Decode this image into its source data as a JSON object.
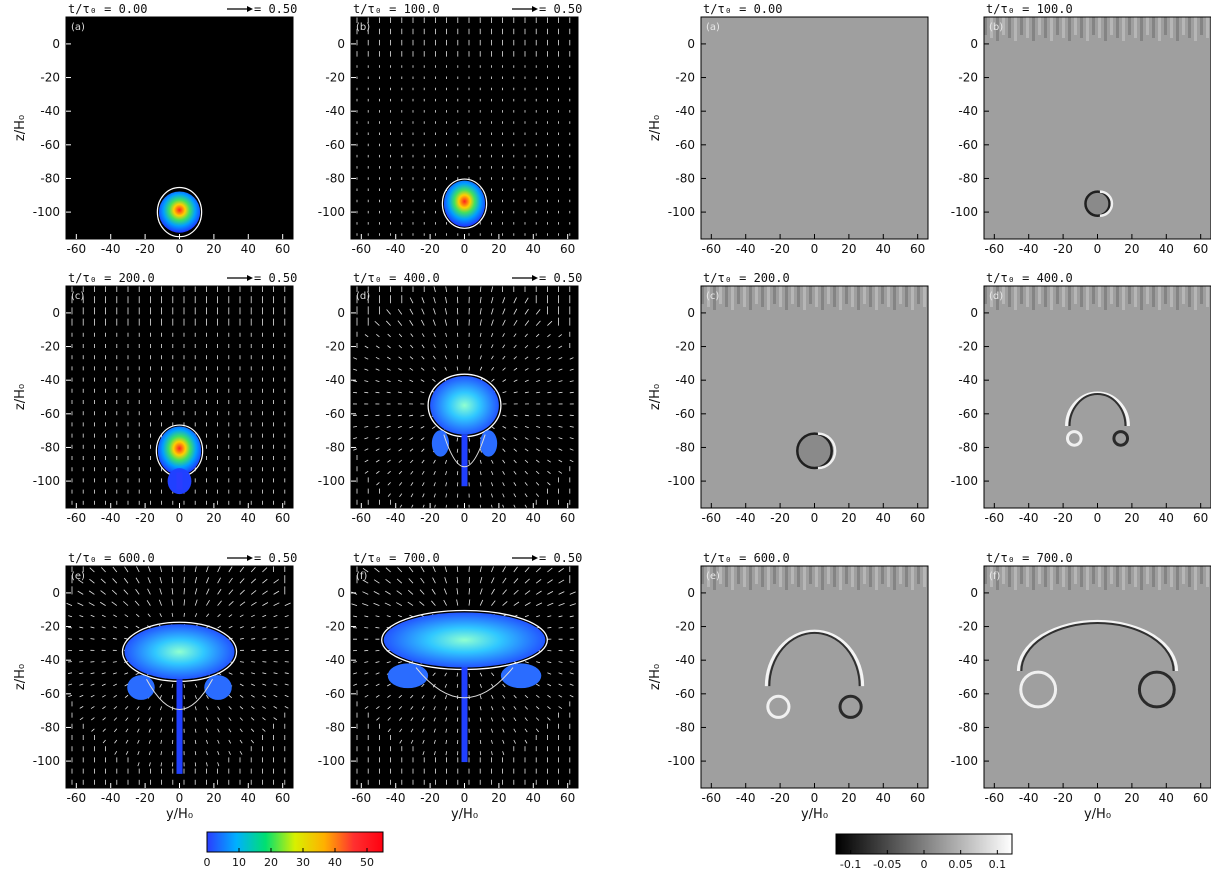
{
  "figure": {
    "left_group": "magnetic field strength with velocity arrows",
    "right_group": "grayscale field"
  },
  "panels": [
    {
      "col": 0,
      "row": 0,
      "letter": "(a)",
      "time": "t/τ₀ = 0.00",
      "arrow_label": "= 0.50",
      "side": "left"
    },
    {
      "col": 1,
      "row": 0,
      "letter": "(b)",
      "time": "t/τ₀ = 100.0",
      "arrow_label": "= 0.50",
      "side": "left"
    },
    {
      "col": 0,
      "row": 1,
      "letter": "(c)",
      "time": "t/τ₀ = 200.0",
      "arrow_label": "= 0.50",
      "side": "left"
    },
    {
      "col": 1,
      "row": 1,
      "letter": "(d)",
      "time": "t/τ₀ = 400.0",
      "arrow_label": "= 0.50",
      "side": "left"
    },
    {
      "col": 0,
      "row": 2,
      "letter": "(e)",
      "time": "t/τ₀ = 600.0",
      "arrow_label": "= 0.50",
      "side": "left"
    },
    {
      "col": 1,
      "row": 2,
      "letter": "(f)",
      "time": "t/τ₀ = 700.0",
      "arrow_label": "= 0.50",
      "side": "left"
    },
    {
      "col": 2,
      "row": 0,
      "letter": "(a)",
      "time": "t/τ₀ = 0.00",
      "side": "right"
    },
    {
      "col": 3,
      "row": 0,
      "letter": "(b)",
      "time": "t/τ₀ = 100.0",
      "side": "right"
    },
    {
      "col": 2,
      "row": 1,
      "letter": "(c)",
      "time": "t/τ₀ = 200.0",
      "side": "right"
    },
    {
      "col": 3,
      "row": 1,
      "letter": "(d)",
      "time": "t/τ₀ = 400.0",
      "side": "right"
    },
    {
      "col": 2,
      "row": 2,
      "letter": "(e)",
      "time": "t/τ₀ = 600.0",
      "side": "right"
    },
    {
      "col": 3,
      "row": 2,
      "letter": "(f)",
      "time": "t/τ₀ = 700.0",
      "side": "right"
    }
  ],
  "axes": {
    "xlabel": "y/H₀",
    "ylabel": "z/H₀",
    "xticks": [
      -60,
      -40,
      -20,
      0,
      20,
      40,
      60
    ],
    "yticks": [
      0,
      -20,
      -40,
      -60,
      -80,
      -100
    ],
    "xlim": [
      -66,
      66
    ],
    "ylim": [
      -116,
      16
    ]
  },
  "colorbar_left": {
    "ticks": [
      "0",
      "10",
      "20",
      "30",
      "40",
      "50"
    ],
    "range": [
      0,
      55
    ],
    "colors": [
      "#2a3cff",
      "#00b0ff",
      "#00e070",
      "#d8f000",
      "#ffb000",
      "#ff3030",
      "#ff0010"
    ]
  },
  "colorbar_right": {
    "ticks": [
      "-0.1",
      "-0.05",
      "0",
      "0.05",
      "0.1"
    ],
    "range": [
      -0.12,
      0.12
    ],
    "colors": [
      "#000000",
      "#ffffff"
    ]
  },
  "tube_centers": [
    -100,
    -95,
    -82,
    -55,
    -35,
    -28
  ],
  "chart_data": [
    {
      "type": "heatmap",
      "title": "t/τ₀ = 0.00",
      "panel": "left-(a)"
    },
    {
      "type": "heatmap",
      "title": "t/τ₀ = 100.0",
      "panel": "left-(b)"
    },
    {
      "type": "heatmap",
      "title": "t/τ₀ = 200.0",
      "panel": "left-(c)"
    },
    {
      "type": "heatmap",
      "title": "t/τ₀ = 400.0",
      "panel": "left-(d)"
    },
    {
      "type": "heatmap",
      "title": "t/τ₀ = 600.0",
      "panel": "left-(e)"
    },
    {
      "type": "heatmap",
      "title": "t/τ₀ = 700.0",
      "panel": "left-(f)"
    },
    {
      "type": "heatmap",
      "title": "t/τ₀ = 0.00",
      "panel": "right-(a)"
    },
    {
      "type": "heatmap",
      "title": "t/τ₀ = 100.0",
      "panel": "right-(b)"
    },
    {
      "type": "heatmap",
      "title": "t/τ₀ = 200.0",
      "panel": "right-(c)"
    },
    {
      "type": "heatmap",
      "title": "t/τ₀ = 400.0",
      "panel": "right-(d)"
    },
    {
      "type": "heatmap",
      "title": "t/τ₀ = 600.0",
      "panel": "right-(e)"
    },
    {
      "type": "heatmap",
      "title": "t/τ₀ = 700.0",
      "panel": "right-(f)"
    }
  ]
}
